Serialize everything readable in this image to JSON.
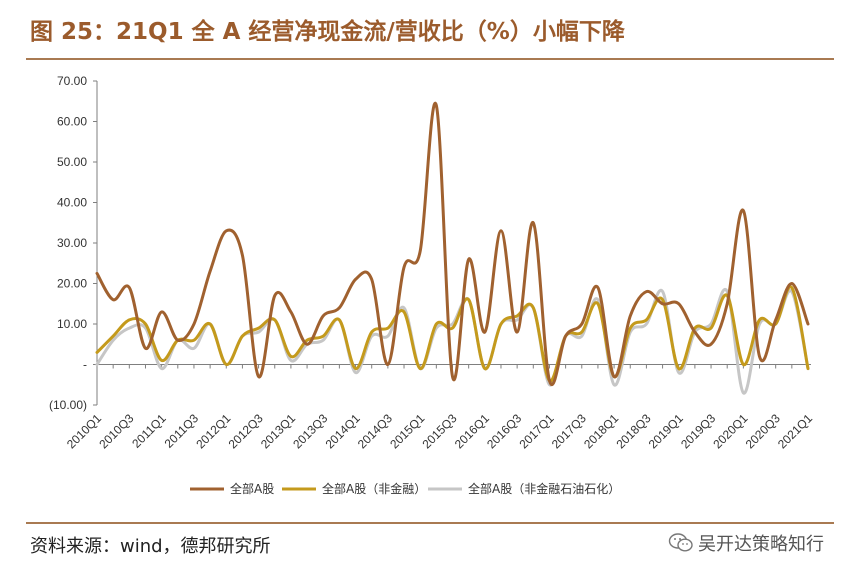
{
  "header": {
    "title": "图 25：21Q1 全 A 经营净现金流/营收比（%）小幅下降"
  },
  "footer": {
    "source": "资料来源：wind，德邦研究所",
    "watermark": "吴开达策略知行",
    "watermark_icon": "wechat-icon"
  },
  "chart_data": {
    "type": "line",
    "x": [
      "2010Q1",
      "2010Q2",
      "2010Q3",
      "2010Q4",
      "2011Q1",
      "2011Q2",
      "2011Q3",
      "2011Q4",
      "2012Q1",
      "2012Q2",
      "2012Q3",
      "2012Q4",
      "2013Q1",
      "2013Q2",
      "2013Q3",
      "2013Q4",
      "2014Q1",
      "2014Q2",
      "2014Q3",
      "2014Q4",
      "2015Q1",
      "2015Q2",
      "2015Q3",
      "2015Q4",
      "2016Q1",
      "2016Q2",
      "2016Q3",
      "2016Q4",
      "2017Q1",
      "2017Q2",
      "2017Q3",
      "2017Q4",
      "2018Q1",
      "2018Q2",
      "2018Q3",
      "2018Q4",
      "2019Q1",
      "2019Q2",
      "2019Q3",
      "2019Q4",
      "2020Q1",
      "2020Q2",
      "2020Q3",
      "2020Q4",
      "2021Q1"
    ],
    "x_tick_labels": [
      "2010Q1",
      "2010Q3",
      "2011Q1",
      "2011Q3",
      "2012Q1",
      "2012Q3",
      "2013Q1",
      "2013Q3",
      "2014Q1",
      "2014Q3",
      "2015Q1",
      "2015Q3",
      "2016Q1",
      "2016Q3",
      "2017Q1",
      "2017Q3",
      "2018Q1",
      "2018Q3",
      "2019Q1",
      "2019Q3",
      "2020Q1",
      "2020Q3",
      "2021Q1"
    ],
    "series": [
      {
        "name": "全部A股",
        "color": "#a0612f",
        "values": [
          22.5,
          16,
          19,
          4,
          13,
          6,
          10,
          23,
          33,
          27,
          -3,
          17,
          13,
          5,
          12,
          14,
          21,
          21,
          0,
          24,
          28,
          64,
          -3,
          26,
          8,
          33,
          8,
          35,
          -4,
          7,
          10,
          19,
          -3,
          12,
          18,
          15,
          15,
          8,
          5,
          15,
          38,
          2,
          11,
          20,
          10
        ]
      },
      {
        "name": "全部A股（非金融）",
        "color": "#c49a1c",
        "values": [
          3,
          7,
          11,
          10,
          1,
          6,
          6,
          10,
          0,
          7,
          9,
          11,
          2,
          6,
          7,
          11,
          -1,
          8,
          9,
          13,
          -1,
          10,
          9,
          16,
          -1,
          10,
          12,
          14,
          -4,
          7,
          8,
          15,
          -3,
          9,
          11,
          16,
          -1,
          9,
          9,
          17,
          0,
          11,
          10,
          19,
          -1
        ]
      },
      {
        "name": "全部A股（非金融石油石化）",
        "color": "#c6c6c6",
        "values": [
          0,
          6,
          9,
          9,
          -1,
          6,
          4,
          10,
          0,
          7,
          8,
          11,
          1,
          5,
          6,
          11,
          -2,
          7,
          7,
          14,
          -1,
          9,
          10,
          16,
          -1,
          10,
          11,
          14,
          -5,
          7,
          7,
          16,
          -5,
          8,
          10,
          18,
          -2,
          8,
          10,
          18,
          -7,
          10,
          10,
          18,
          -1
        ]
      }
    ],
    "y_tick_labels": [
      "70.00",
      "60.00",
      "50.00",
      "40.00",
      "30.00",
      "20.00",
      "10.00",
      "-",
      "(10.00)"
    ],
    "ylim": [
      -10,
      70
    ],
    "grid": false,
    "legend_position": "bottom"
  }
}
